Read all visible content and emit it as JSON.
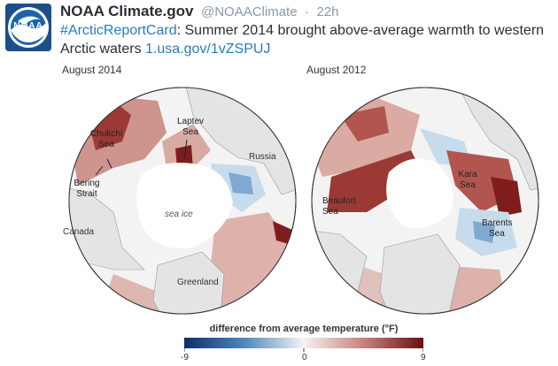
{
  "tweet": {
    "author_name": "NOAA Climate.gov",
    "handle": "@NOAAClimate",
    "separator": "·",
    "time": "22h",
    "hashtag": "#ArcticReportCard",
    "text": ": Summer 2014 brought above-average warmth to western Arctic waters ",
    "link": "1.usa.gov/1vZSPUJ",
    "logo_text": "NOAA"
  },
  "figure": {
    "left_title": "August 2014",
    "right_title": "August 2012",
    "left_labels": {
      "chukchi": "Chukchi Sea",
      "laptev": "Laptev Sea",
      "russia": "Russia",
      "bering": "Bering Strait",
      "sea_ice": "sea ice",
      "canada": "Canada",
      "greenland": "Greenland"
    },
    "right_labels": {
      "kara": "Kara Sea",
      "beaufort": "Beaufort Sea",
      "barents": "Barents Sea"
    },
    "legend": {
      "title": "difference from average temperature (°F)",
      "min_label": "-9",
      "mid_label": "0",
      "max_label": "9"
    },
    "colors": {
      "warm_dark": "#7f1d1d",
      "warm": "#b2554f",
      "warm_light": "#e2b0a8",
      "cool_light": "#c6dced",
      "cool": "#5f93c3",
      "cool_dark": "#1f4f8f",
      "land": "#e4e4e4",
      "ice": "#ffffff"
    }
  }
}
